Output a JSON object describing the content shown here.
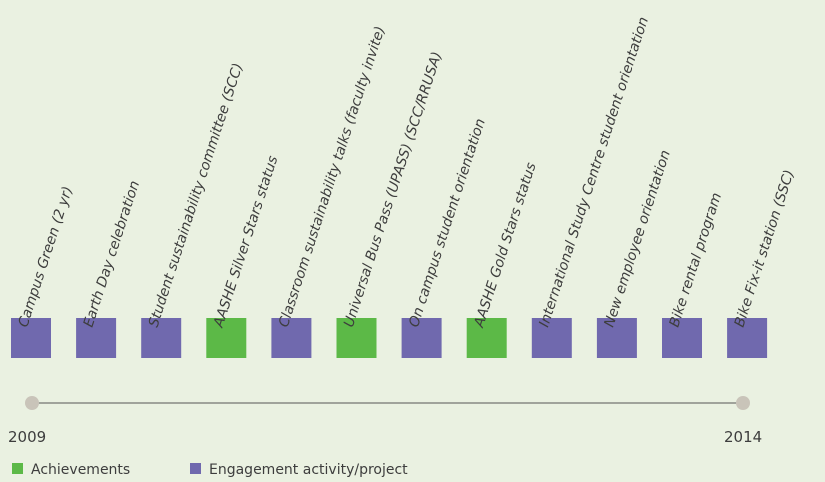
{
  "items": [
    {
      "label": "Campus Green (2 yr)",
      "color": "#7069ae"
    },
    {
      "label": "Earth Day celebration",
      "color": "#7069ae"
    },
    {
      "label": "Student sustainability committee (SCC)",
      "color": "#7069ae"
    },
    {
      "label": "AASHE Silver Stars status",
      "color": "#5cb947"
    },
    {
      "label": "Classroom sustainability talks (faculty invite)",
      "color": "#7069ae"
    },
    {
      "label": "Universal Bus Pass (UPASS) (SCC/RRUSA)",
      "color": "#5cb947"
    },
    {
      "label": "On campus student orientation",
      "color": "#7069ae"
    },
    {
      "label": "AASHE Gold Stars status",
      "color": "#5cb947"
    },
    {
      "label": "International Study Centre student orientation",
      "color": "#7069ae"
    },
    {
      "label": "New employee orientation",
      "color": "#7069ae"
    },
    {
      "label": "Bike rental program",
      "color": "#7069ae"
    },
    {
      "label": "Bike Fix-it station (SSC)",
      "color": "#7069ae"
    }
  ],
  "timeline": {
    "start": "2009",
    "end": "2014"
  },
  "legend": [
    {
      "label": "Achievements",
      "color": "#5cb947"
    },
    {
      "label": "Engagement activity/project",
      "color": "#7069ae"
    }
  ]
}
